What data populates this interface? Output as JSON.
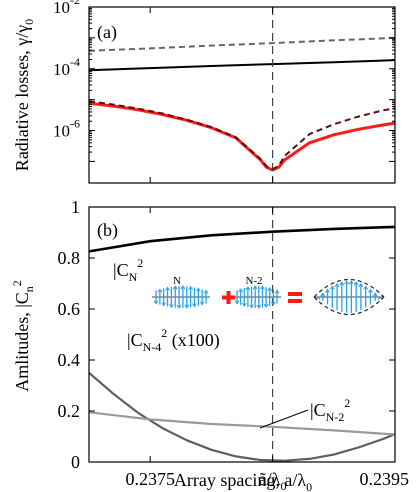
{
  "chart_data": [
    {
      "type": "line",
      "panel_label": "(a)",
      "ylabel": "Radiative losses, γ/γ",
      "ylabel_sub": "0",
      "y_scale": "log",
      "xlim": [
        0.237,
        0.2395
      ],
      "ylim_log10": [
        -7.7,
        -2
      ],
      "yticks": [
        {
          "base": "10",
          "exp": "-2",
          "value": -2
        },
        {
          "base": "10",
          "exp": "-4",
          "value": -4
        },
        {
          "base": "10",
          "exp": "-6",
          "value": -6
        }
      ],
      "vline_x": 0.2385,
      "series": [
        {
          "color": "#000000",
          "style": "solid",
          "x": [
            0.237,
            0.2375,
            0.238,
            0.2385,
            0.239,
            0.2395
          ],
          "y_log10": [
            -4.05,
            -3.98,
            -3.91,
            -3.85,
            -3.79,
            -3.72
          ]
        },
        {
          "color": "#666666",
          "style": "dashed",
          "x": [
            0.237,
            0.2375,
            0.238,
            0.2385,
            0.239,
            0.2395
          ],
          "y_log10": [
            -3.42,
            -3.34,
            -3.25,
            -3.17,
            -3.08,
            -3.0
          ]
        },
        {
          "color": "#ff1a1a",
          "style": "solid",
          "x": [
            0.237,
            0.2372,
            0.2374,
            0.2376,
            0.2378,
            0.238,
            0.2382,
            0.2384,
            0.23845,
            0.2385,
            0.23855,
            0.2386,
            0.2388,
            0.239,
            0.2392,
            0.2394,
            0.2395
          ],
          "y_log10": [
            -5.12,
            -5.21,
            -5.33,
            -5.48,
            -5.67,
            -5.91,
            -6.24,
            -6.95,
            -7.19,
            -7.28,
            -7.19,
            -6.95,
            -6.4,
            -6.14,
            -5.96,
            -5.82,
            -5.76
          ]
        },
        {
          "color": "#5a0f0f",
          "style": "dashed",
          "x": [
            0.237,
            0.2372,
            0.2374,
            0.2376,
            0.2378,
            0.238,
            0.2382,
            0.2384,
            0.23845,
            0.2385,
            0.23855,
            0.2386,
            0.2388,
            0.239,
            0.2392,
            0.2394,
            0.2395
          ],
          "y_log10": [
            -5.05,
            -5.16,
            -5.29,
            -5.45,
            -5.65,
            -5.89,
            -6.22,
            -6.92,
            -7.16,
            -7.25,
            -7.14,
            -6.82,
            -6.12,
            -5.8,
            -5.55,
            -5.35,
            -5.28
          ]
        }
      ]
    },
    {
      "type": "line",
      "panel_label": "(b)",
      "ylabel": "Amlitudes, |C",
      "ylabel_sub": "n",
      "ylabel_sup": "2",
      "xlabel": "Array spacing, a/λ",
      "xlabel_sub": "0",
      "xlim": [
        0.237,
        0.2395
      ],
      "ylim": [
        0,
        1
      ],
      "yticks": [
        "0",
        "0.2",
        "0.4",
        "0.6",
        "0.8",
        "1"
      ],
      "xticks": [
        {
          "value": 0.2375,
          "label": "0.2375"
        },
        {
          "value": 0.2385,
          "label": "ã/λ",
          "sub": "0"
        },
        {
          "value": 0.2395,
          "label": "0.2395"
        }
      ],
      "vline_x": 0.2385,
      "series": [
        {
          "label": "|C",
          "label_sub": "N",
          "label_sup": "2",
          "label_extra": "",
          "color": "#000000",
          "x": [
            0.237,
            0.2375,
            0.238,
            0.2385,
            0.239,
            0.2395
          ],
          "y": [
            0.826,
            0.866,
            0.889,
            0.903,
            0.914,
            0.922
          ]
        },
        {
          "label": "|C",
          "label_sub": "N-4",
          "label_sup": "2",
          "label_extra": " (x100)",
          "color": "#5f5f5f",
          "x": [
            0.237,
            0.2372,
            0.2374,
            0.2376,
            0.2378,
            0.238,
            0.2382,
            0.2384,
            0.2386,
            0.2388,
            0.239,
            0.2392,
            0.2394,
            0.2395
          ],
          "y": [
            0.35,
            0.267,
            0.193,
            0.133,
            0.085,
            0.048,
            0.022,
            0.008,
            0.005,
            0.012,
            0.029,
            0.057,
            0.09,
            0.11
          ]
        },
        {
          "label": "|C",
          "label_sub": "N-2",
          "label_sup": "2",
          "label_extra": "",
          "color": "#9a9a9a",
          "x": [
            0.237,
            0.2375,
            0.238,
            0.2385,
            0.239,
            0.2395
          ],
          "y": [
            0.195,
            0.167,
            0.149,
            0.138,
            0.124,
            0.108
          ]
        }
      ],
      "inset": {
        "label_left": "N",
        "label_right": "N-2"
      }
    }
  ]
}
